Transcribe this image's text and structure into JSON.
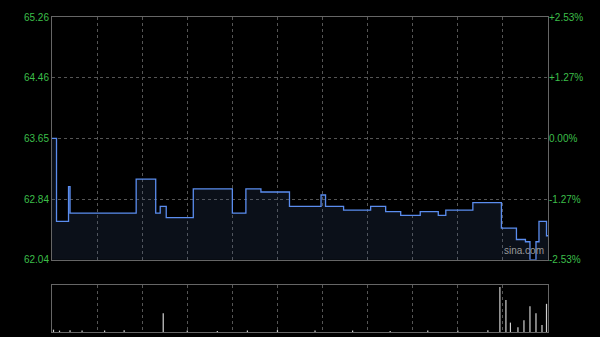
{
  "chart_data": [
    {
      "type": "line",
      "x": [
        0,
        3,
        11,
        12,
        56,
        69,
        72,
        76,
        94,
        120,
        129,
        139,
        158,
        179,
        182,
        194,
        212,
        222,
        232,
        245,
        257,
        262,
        280,
        299,
        309,
        315,
        318,
        322,
        324,
        329,
        330
      ],
      "values": [
        63.65,
        62.55,
        63.01,
        62.66,
        63.11,
        62.66,
        62.75,
        62.6,
        62.98,
        62.66,
        62.98,
        62.94,
        62.75,
        62.9,
        62.75,
        62.7,
        62.75,
        62.68,
        62.63,
        62.68,
        62.63,
        62.7,
        62.8,
        62.46,
        62.31,
        62.28,
        62.04,
        62.28,
        62.55,
        62.36,
        62.36
      ],
      "color": "#5b8def",
      "line_style": "step",
      "xlim": [
        0,
        330
      ],
      "xticks": [
        30,
        60,
        90,
        120,
        150,
        180,
        210,
        240,
        270,
        300
      ],
      "ylim": [
        62.04,
        65.26
      ],
      "yticks": [
        62.04,
        62.84,
        63.65,
        64.46,
        65.26
      ],
      "y2lim": [
        -2.53,
        2.53
      ],
      "y2ticks": [
        {
          "value": -2.53,
          "label": "-2.53%"
        },
        {
          "value": -1.27,
          "label": "-1.27%"
        },
        {
          "value": 0,
          "label": "0.00%"
        },
        {
          "value": 1.27,
          "label": "+1.27%"
        },
        {
          "value": 2.53,
          "label": "+2.53%"
        }
      ],
      "grid": true,
      "tick_labels": "y",
      "annotation": "sina.com"
    },
    {
      "type": "bar",
      "x": [
        1,
        5,
        12,
        20,
        35,
        48,
        74,
        90,
        110,
        130,
        150,
        175,
        200,
        225,
        250,
        270,
        290,
        298,
        302,
        305,
        310,
        314,
        318,
        322,
        326,
        329
      ],
      "values": [
        5,
        3,
        4,
        3,
        3,
        4,
        40,
        3,
        2,
        3,
        4,
        3,
        3,
        2,
        3,
        3,
        4,
        96,
        68,
        20,
        10,
        25,
        55,
        40,
        15,
        60
      ],
      "color": "#d0d0d0",
      "xlim": [
        0,
        330
      ],
      "xticks": [
        30,
        60,
        90,
        120,
        150,
        180,
        210,
        240,
        270,
        300
      ],
      "ylim": [
        0,
        100
      ],
      "grid": true,
      "tick_labels": false
    }
  ]
}
